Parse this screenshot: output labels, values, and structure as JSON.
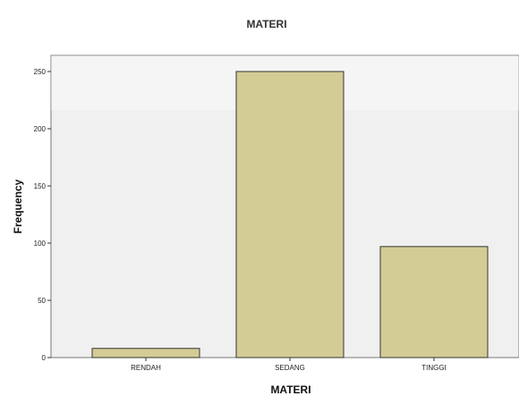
{
  "chart_data": {
    "type": "bar",
    "title": "MATERI",
    "xlabel": "MATERI",
    "ylabel": "Frequency",
    "categories": [
      "RENDAH",
      "SEDANG",
      "TINGGI"
    ],
    "values": [
      8,
      250,
      97
    ],
    "ylim": [
      0,
      260
    ],
    "yticks": [
      0,
      50,
      100,
      150,
      200,
      250
    ],
    "grid": false,
    "legend": "none"
  },
  "colors": {
    "bar_fill": "#d3cc95",
    "bar_stroke": "#333333",
    "plot_background": "#f0f0f0",
    "plot_border": "#777777",
    "background": "#ffffff"
  }
}
